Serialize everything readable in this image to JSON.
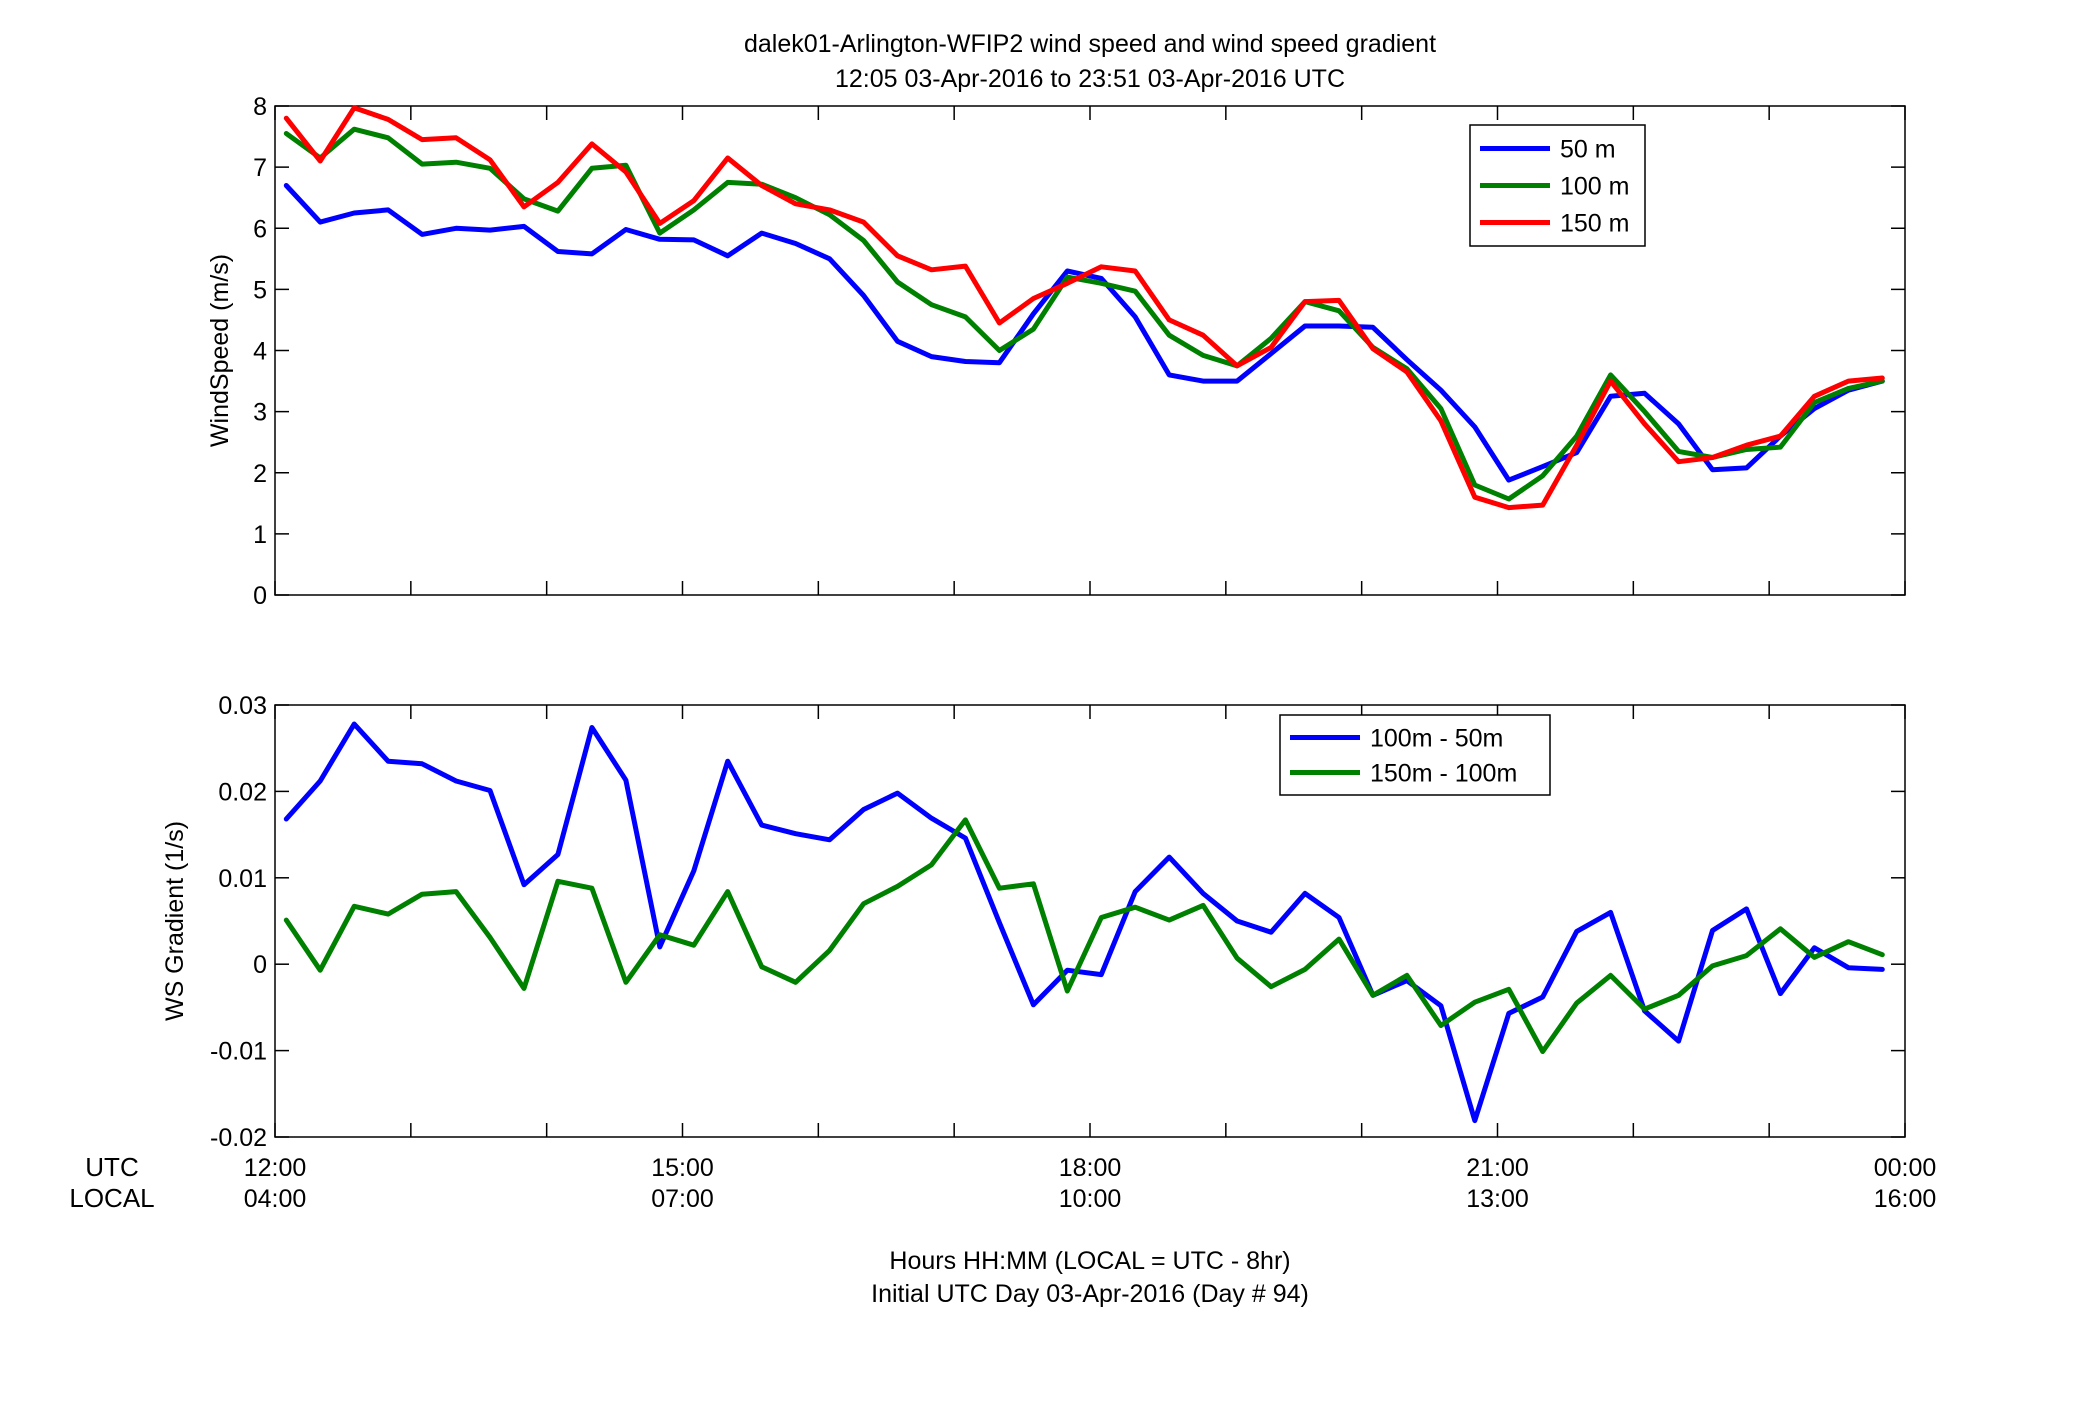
{
  "title_line1": "dalek01-Arlington-WFIP2  wind speed and wind speed gradient",
  "title_line2": "12:05 03-Apr-2016 to 23:51 03-Apr-2016  UTC",
  "row_labels": {
    "utc": "UTC",
    "local": "LOCAL"
  },
  "x_ticks": [
    {
      "hour": 12,
      "utc": "12:00",
      "local": "04:00"
    },
    {
      "hour": 15,
      "utc": "15:00",
      "local": "07:00"
    },
    {
      "hour": 18,
      "utc": "18:00",
      "local": "10:00"
    },
    {
      "hour": 21,
      "utc": "21:00",
      "local": "13:00"
    },
    {
      "hour": 24,
      "utc": "00:00",
      "local": "16:00"
    }
  ],
  "footer_line1": "Hours HH:MM  (LOCAL = UTC - 8hr)",
  "footer_line2": "Initial UTC Day 03-Apr-2016 (Day # 94)",
  "colors": {
    "blue": "#0000ff",
    "green": "#008000",
    "red": "#ff0000"
  },
  "chart_data": [
    {
      "type": "line",
      "ylabel": "WindSpeed (m/s)",
      "xlim": [
        12,
        24
      ],
      "ylim": [
        0,
        8
      ],
      "yticks": [
        "0",
        "1",
        "2",
        "3",
        "4",
        "5",
        "6",
        "7",
        "8"
      ],
      "legend_position": "top-right",
      "x": [
        12.083,
        12.333,
        12.583,
        12.833,
        13.083,
        13.333,
        13.583,
        13.833,
        14.083,
        14.333,
        14.583,
        14.833,
        15.083,
        15.333,
        15.583,
        15.833,
        16.083,
        16.333,
        16.583,
        16.833,
        17.083,
        17.333,
        17.583,
        17.833,
        18.083,
        18.333,
        18.583,
        18.833,
        19.083,
        19.333,
        19.583,
        19.833,
        20.083,
        20.333,
        20.583,
        20.833,
        21.083,
        21.333,
        21.583,
        21.833,
        22.083,
        22.333,
        22.583,
        22.833,
        23.083,
        23.333,
        23.583,
        23.833
      ],
      "series": [
        {
          "name": "50 m",
          "color": "#0000ff",
          "values": [
            6.7,
            6.1,
            6.25,
            6.3,
            5.9,
            6.0,
            5.97,
            6.03,
            5.62,
            5.58,
            5.98,
            5.82,
            5.81,
            5.55,
            5.92,
            5.75,
            5.5,
            4.9,
            4.15,
            3.9,
            3.82,
            3.8,
            4.6,
            5.3,
            5.18,
            4.55,
            3.6,
            3.5,
            3.5,
            3.95,
            4.4,
            4.4,
            4.38,
            3.85,
            3.35,
            2.75,
            1.88,
            2.1,
            2.33,
            3.25,
            3.3,
            2.8,
            2.05,
            2.08,
            2.6,
            3.05,
            3.35,
            3.5
          ]
        },
        {
          "name": "100 m",
          "color": "#008000",
          "values": [
            7.55,
            7.15,
            7.62,
            7.48,
            7.05,
            7.08,
            6.98,
            6.48,
            6.28,
            6.98,
            7.03,
            5.92,
            6.3,
            6.75,
            6.72,
            6.5,
            6.22,
            5.8,
            5.12,
            4.75,
            4.55,
            4.0,
            4.35,
            5.2,
            5.1,
            4.97,
            4.25,
            3.92,
            3.75,
            4.2,
            4.8,
            4.65,
            4.05,
            3.7,
            3.05,
            1.8,
            1.57,
            1.95,
            2.6,
            3.6,
            3.0,
            2.35,
            2.25,
            2.38,
            2.42,
            3.15,
            3.38,
            3.5
          ]
        },
        {
          "name": "150 m",
          "color": "#ff0000",
          "values": [
            7.8,
            7.1,
            7.97,
            7.78,
            7.45,
            7.48,
            7.12,
            6.35,
            6.75,
            7.38,
            6.92,
            6.08,
            6.45,
            7.15,
            6.7,
            6.4,
            6.3,
            6.1,
            5.55,
            5.32,
            5.38,
            4.45,
            4.85,
            5.1,
            5.37,
            5.3,
            4.5,
            4.25,
            3.75,
            4.05,
            4.8,
            4.82,
            4.03,
            3.65,
            2.85,
            1.6,
            1.43,
            1.47,
            2.45,
            3.5,
            2.8,
            2.18,
            2.25,
            2.45,
            2.6,
            3.25,
            3.5,
            3.55
          ]
        }
      ]
    },
    {
      "type": "line",
      "ylabel": "WS Gradient (1/s)",
      "xlim": [
        12,
        24
      ],
      "ylim": [
        -0.02,
        0.03
      ],
      "yticks": [
        "-0.02",
        "-0.01",
        "0",
        "0.01",
        "0.02",
        "0.03"
      ],
      "legend_position": "top-right",
      "x": [
        12.083,
        12.333,
        12.583,
        12.833,
        13.083,
        13.333,
        13.583,
        13.833,
        14.083,
        14.333,
        14.583,
        14.833,
        15.083,
        15.333,
        15.583,
        15.833,
        16.083,
        16.333,
        16.583,
        16.833,
        17.083,
        17.333,
        17.583,
        17.833,
        18.083,
        18.333,
        18.583,
        18.833,
        19.083,
        19.333,
        19.583,
        19.833,
        20.083,
        20.333,
        20.583,
        20.833,
        21.083,
        21.333,
        21.583,
        21.833,
        22.083,
        22.333,
        22.583,
        22.833,
        23.083,
        23.333,
        23.583,
        23.833
      ],
      "series": [
        {
          "name": "100m - 50m",
          "color": "#0000ff",
          "values": [
            0.0168,
            0.0212,
            0.0278,
            0.0235,
            0.0232,
            0.0212,
            0.0201,
            0.0092,
            0.0127,
            0.0274,
            0.0213,
            0.002,
            0.0108,
            0.0235,
            0.0161,
            0.0151,
            0.0144,
            0.0179,
            0.0198,
            0.0169,
            0.0146,
            0.0048,
            -0.0047,
            -0.0007,
            -0.0012,
            0.0084,
            0.0124,
            0.0082,
            0.005,
            0.0037,
            0.0082,
            0.0054,
            -0.0036,
            -0.0019,
            -0.0048,
            -0.0181,
            -0.0057,
            -0.0038,
            0.0038,
            0.006,
            -0.0054,
            -0.0089,
            0.0039,
            0.0064,
            -0.0034,
            0.0019,
            -0.0004,
            -0.0006
          ]
        },
        {
          "name": "150m - 100m",
          "color": "#008000",
          "values": [
            0.0051,
            -0.0007,
            0.0067,
            0.0058,
            0.0081,
            0.0084,
            0.0031,
            -0.0028,
            0.0096,
            0.0088,
            -0.0021,
            0.0034,
            0.0022,
            0.0084,
            -0.0003,
            -0.0021,
            0.0016,
            0.007,
            0.009,
            0.0115,
            0.0167,
            0.0088,
            0.0093,
            -0.0031,
            0.0054,
            0.0066,
            0.0051,
            0.0068,
            0.0007,
            -0.0026,
            -0.0006,
            0.0029,
            -0.0036,
            -0.0013,
            -0.0071,
            -0.0044,
            -0.0029,
            -0.0101,
            -0.0045,
            -0.0013,
            -0.0052,
            -0.0036,
            -0.0002,
            0.001,
            0.0041,
            0.0008,
            0.0026,
            0.0011
          ]
        }
      ]
    }
  ]
}
